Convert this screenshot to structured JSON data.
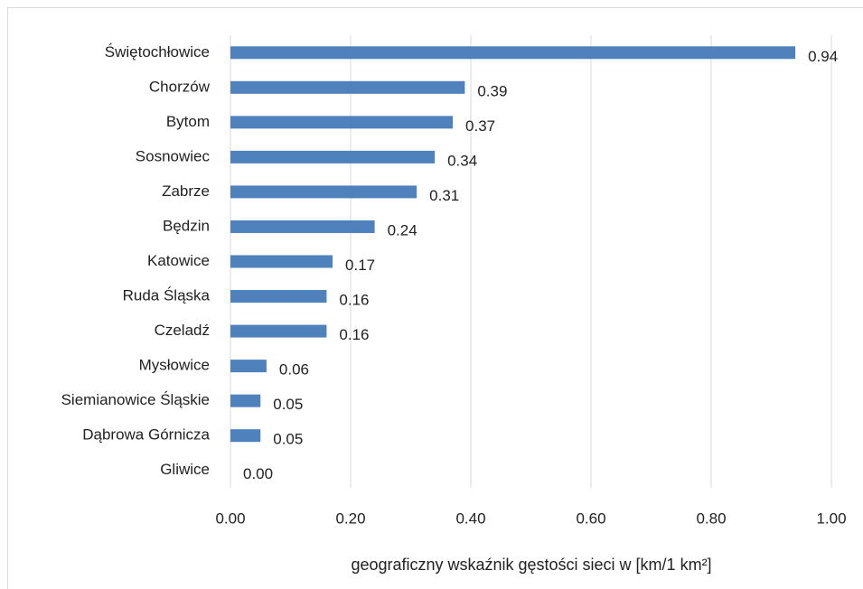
{
  "chart_data": {
    "type": "bar",
    "orientation": "horizontal",
    "categories": [
      "Świętochłowice",
      "Chorzów",
      "Bytom",
      "Sosnowiec",
      "Zabrze",
      "Będzin",
      "Katowice",
      "Ruda Śląska",
      "Czeladź",
      "Mysłowice",
      "Siemianowice Śląskie",
      "Dąbrowa Górnicza",
      "Gliwice"
    ],
    "values": [
      0.94,
      0.39,
      0.37,
      0.34,
      0.31,
      0.24,
      0.17,
      0.16,
      0.16,
      0.06,
      0.05,
      0.05,
      0.0
    ],
    "value_labels": [
      "0.94",
      "0.39",
      "0.37",
      "0.34",
      "0.31",
      "0.24",
      "0.17",
      "0.16",
      "0.16",
      "0.06",
      "0.05",
      "0.05",
      "0.00"
    ],
    "color": "#4f81bd",
    "xlabel": "geograficzny wskaźnik gęstości sieci w [km/1 km²]",
    "xlim": [
      0,
      1
    ],
    "xticks": [
      {
        "value": 0,
        "label": "0.00"
      },
      {
        "value": 0.2,
        "label": "0.20"
      },
      {
        "value": 0.4,
        "label": "0.40"
      },
      {
        "value": 0.6,
        "label": "0.60"
      },
      {
        "value": 0.8,
        "label": "0.80"
      },
      {
        "value": 1,
        "label": "1.00"
      }
    ],
    "grid": true
  }
}
